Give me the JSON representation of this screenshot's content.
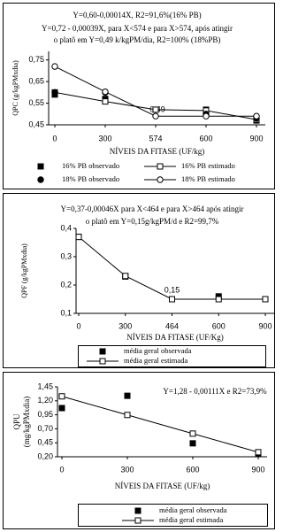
{
  "chart_data": [
    {
      "type": "line",
      "annotations": [
        "Y=0,60-0,00014X, R2=91,6%(16% PB)",
        "Y=0,72 - 0,00039X, para X<574 e para X>574, após atingir",
        "o platô em Y=0,49 k/kgPM/dia, R2=100% (18%PB)",
        "0,49"
      ],
      "ylabel": "QPC (g/kgPMxdia)",
      "xlabel": "NÍVEIS DA FITASE (UF/kg)",
      "categories": [
        "0",
        "300",
        "574",
        "600",
        "900"
      ],
      "ylim": [
        0.45,
        0.79
      ],
      "yticks": [
        {
          "value": 0.45,
          "label": "0,45"
        },
        {
          "value": 0.55,
          "label": "0,55"
        },
        {
          "value": 0.65,
          "label": "0,65"
        },
        {
          "value": 0.75,
          "label": "0,75"
        }
      ],
      "series": [
        {
          "name": "16% PB observado",
          "color": "#000",
          "marker": "square",
          "fill": "filled",
          "line": false,
          "values": [
            0.59,
            0.57,
            null,
            0.52,
            0.47
          ]
        },
        {
          "name": "16% PB estimado",
          "color": "#000",
          "marker": "square",
          "fill": "open",
          "line": true,
          "values": [
            0.6,
            0.558,
            0.52,
            0.516,
            0.474
          ]
        },
        {
          "name": "18% PB observado",
          "color": "#000",
          "marker": "circle",
          "fill": "filled",
          "line": false,
          "values": [
            0.6,
            0.6,
            null,
            0.5,
            0.48
          ]
        },
        {
          "name": "18% PB estimado",
          "color": "#000",
          "marker": "circle",
          "fill": "open",
          "line": true,
          "values": [
            0.72,
            0.603,
            0.49,
            0.49,
            0.49
          ]
        }
      ]
    },
    {
      "type": "line",
      "annotations": [
        "Y=0,37-0,00046X para X<464 e para X>464 após atingir",
        "o platô em Y=0,15g/kgPM/d e R2=99,7%",
        "0,15"
      ],
      "ylabel": "QPF (g/kgPMxdia)",
      "xlabel": "NÍVEIS DA FITASE (UF/Kg)",
      "categories": [
        "0",
        "300",
        "464",
        "600",
        "900"
      ],
      "ylim": [
        0.1,
        0.4
      ],
      "yticks": [
        {
          "value": 0.1,
          "label": "0,1"
        },
        {
          "value": 0.2,
          "label": "0,2"
        },
        {
          "value": 0.3,
          "label": "0,3"
        },
        {
          "value": 0.4,
          "label": "0,4"
        }
      ],
      "series": [
        {
          "name": "média geral observada",
          "color": "#000",
          "marker": "square",
          "fill": "filled",
          "line": false,
          "values": [
            0.37,
            0.23,
            null,
            0.16,
            0.15
          ]
        },
        {
          "name": "média geral estimada",
          "color": "#000",
          "marker": "square",
          "fill": "open",
          "line": true,
          "values": [
            0.37,
            0.232,
            0.15,
            0.15,
            0.15
          ]
        }
      ]
    },
    {
      "type": "line",
      "annotations": [
        "Y=1,28 - 0,00111X e R2=73,9%"
      ],
      "ylabel": [
        "QPU",
        "(mg/kgPMxdia)"
      ],
      "xlabel": "NÍVEIS DA FITASE (UF/kg)",
      "categories": [
        "0",
        "300",
        "600",
        "900"
      ],
      "ylim": [
        0.2,
        1.45
      ],
      "yticks": [
        {
          "value": 0.2,
          "label": "0,20"
        },
        {
          "value": 0.45,
          "label": "0,45"
        },
        {
          "value": 0.7,
          "label": "0,70"
        },
        {
          "value": 0.95,
          "label": "0,95"
        },
        {
          "value": 1.2,
          "label": "1,20"
        },
        {
          "value": 1.45,
          "label": "1,45"
        }
      ],
      "series": [
        {
          "name": "média geral observada",
          "color": "#000",
          "marker": "square",
          "fill": "filled",
          "line": false,
          "values": [
            1.07,
            1.29,
            0.44,
            0.25
          ]
        },
        {
          "name": "média geral estimada",
          "color": "#000",
          "marker": "square",
          "fill": "open",
          "line": true,
          "values": [
            1.28,
            0.947,
            0.614,
            0.281
          ]
        }
      ]
    }
  ]
}
